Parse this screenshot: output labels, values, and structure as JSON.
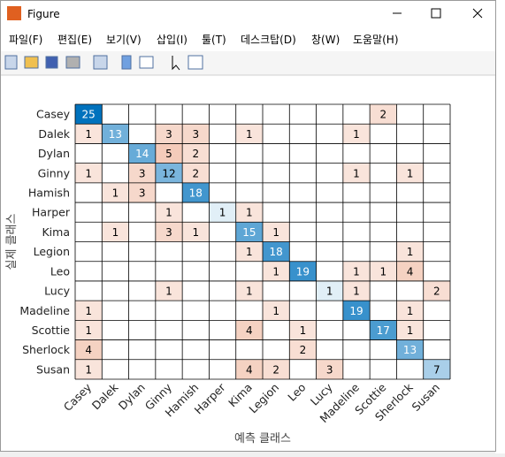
{
  "window": {
    "title": "Figure"
  },
  "menu": [
    "파일(F)",
    "편집(E)",
    "보기(V)",
    "삽입(I)",
    "툴(T)",
    "데스크탑(D)",
    "창(W)",
    "도움말(H)"
  ],
  "chart_data": {
    "type": "confusion",
    "xlabel": "예측 클래스",
    "ylabel": "실제 클래스",
    "classes": [
      "Casey",
      "Dalek",
      "Dylan",
      "Ginny",
      "Hamish",
      "Harper",
      "Kima",
      "Legion",
      "Leo",
      "Lucy",
      "Madeline",
      "Scottie",
      "Sherlock",
      "Susan"
    ],
    "matrix": [
      [
        25,
        null,
        null,
        null,
        null,
        null,
        null,
        null,
        null,
        null,
        null,
        2,
        null,
        null
      ],
      [
        1,
        13,
        null,
        3,
        3,
        null,
        1,
        null,
        null,
        null,
        1,
        null,
        null,
        null
      ],
      [
        null,
        null,
        14,
        5,
        2,
        null,
        null,
        null,
        null,
        null,
        null,
        null,
        null,
        null
      ],
      [
        1,
        null,
        3,
        12,
        2,
        null,
        null,
        null,
        null,
        null,
        1,
        null,
        1,
        null
      ],
      [
        null,
        1,
        3,
        null,
        18,
        null,
        null,
        null,
        null,
        null,
        null,
        null,
        null,
        null
      ],
      [
        null,
        null,
        null,
        1,
        null,
        1,
        1,
        null,
        null,
        null,
        null,
        null,
        null,
        null
      ],
      [
        null,
        1,
        null,
        3,
        1,
        null,
        15,
        1,
        null,
        null,
        null,
        null,
        null,
        null
      ],
      [
        null,
        null,
        null,
        null,
        null,
        null,
        1,
        18,
        null,
        null,
        null,
        null,
        1,
        null
      ],
      [
        null,
        null,
        null,
        null,
        null,
        null,
        null,
        1,
        19,
        null,
        1,
        1,
        4,
        null
      ],
      [
        null,
        null,
        null,
        1,
        null,
        null,
        1,
        null,
        null,
        1,
        1,
        null,
        null,
        2
      ],
      [
        1,
        null,
        null,
        null,
        null,
        null,
        null,
        1,
        null,
        null,
        19,
        null,
        1,
        null
      ],
      [
        1,
        null,
        null,
        null,
        null,
        null,
        4,
        null,
        1,
        null,
        null,
        17,
        1,
        null
      ],
      [
        4,
        null,
        null,
        null,
        null,
        null,
        null,
        null,
        2,
        null,
        null,
        null,
        13,
        null
      ],
      [
        1,
        null,
        null,
        null,
        null,
        null,
        4,
        2,
        null,
        3,
        null,
        null,
        null,
        7
      ]
    ]
  }
}
